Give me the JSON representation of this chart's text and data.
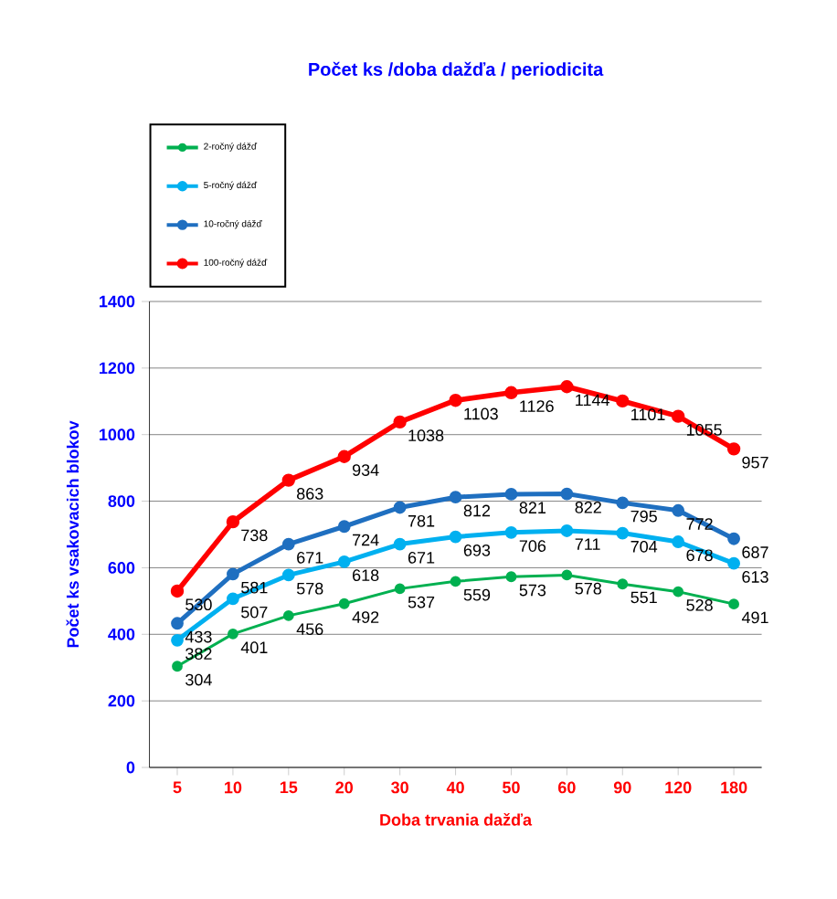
{
  "chart_data": {
    "type": "line",
    "title": "Počet ks /doba dažďa / periodicita",
    "xlabel": "Doba trvania dažďa",
    "ylabel": "Počet ks vsakovacich blokov",
    "categories": [
      "5",
      "10",
      "15",
      "20",
      "30",
      "40",
      "50",
      "60",
      "90",
      "120",
      "180"
    ],
    "series": [
      {
        "name": "2-ročný dážď",
        "color": "#00b050",
        "values": [
          304,
          401,
          456,
          492,
          537,
          559,
          573,
          578,
          551,
          528,
          491
        ]
      },
      {
        "name": "5-ročný dážď",
        "color": "#00b0f0",
        "values": [
          382,
          507,
          578,
          618,
          671,
          693,
          706,
          711,
          704,
          678,
          613
        ]
      },
      {
        "name": "10-ročný dážď",
        "color": "#1f6fc0",
        "values": [
          433,
          581,
          671,
          724,
          781,
          812,
          821,
          822,
          795,
          772,
          687
        ]
      },
      {
        "name": "100-ročný dážď",
        "color": "#ff0000",
        "values": [
          530,
          738,
          863,
          934,
          1038,
          1103,
          1126,
          1144,
          1101,
          1055,
          957
        ]
      }
    ],
    "ylim": [
      0,
      1400
    ],
    "yticks": [
      0,
      200,
      400,
      600,
      800,
      1000,
      1200,
      1400
    ],
    "grid": "y",
    "legend": "top left",
    "marker": "circle",
    "line_style": "solid",
    "data_labels": true
  }
}
